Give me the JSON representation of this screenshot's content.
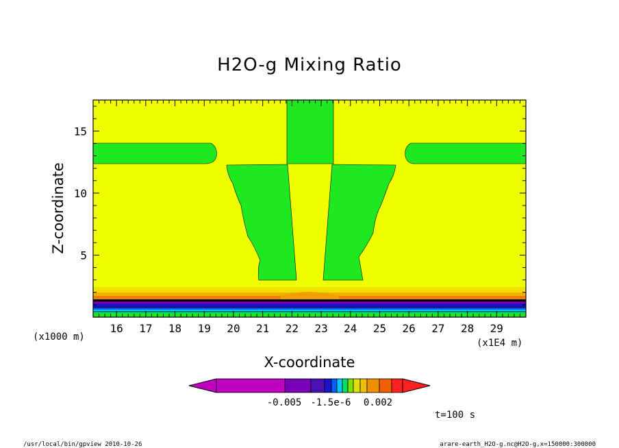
{
  "chart_data": {
    "type": "heatmap",
    "title": "H2O-g Mixing Ratio",
    "xlabel": "X-coordinate",
    "ylabel": "Z-coordinate",
    "x_unit_label": "(x1E4 m)",
    "y_unit_label": "(x1000 m)",
    "x_ticks": [
      "16",
      "17",
      "18",
      "19",
      "20",
      "21",
      "22",
      "23",
      "24",
      "25",
      "26",
      "27",
      "28",
      "29"
    ],
    "y_ticks": [
      "5",
      "10",
      "15"
    ],
    "xlim": [
      15.2,
      30.0
    ],
    "ylim": [
      0.0,
      17.5
    ],
    "colorbar": {
      "labels": [
        "-0.005",
        "-1.5e-6",
        "0.002"
      ],
      "colors": [
        "#c000c0",
        "#c000c0",
        "#7a00b8",
        "#4a10b0",
        "#1c14c8",
        "#0060ff",
        "#00c8ff",
        "#00e060",
        "#80e000",
        "#e0e000",
        "#f0c000",
        "#f09000",
        "#f06000",
        "#ff2020"
      ]
    },
    "regions": {
      "background_color": "#f0ff00",
      "plume_color": "#20e820"
    },
    "time_label": "t=100 s",
    "footer_left": "/usr/local/bin/gpview  2010-10-26",
    "footer_right": "arare-earth_H2O-g.nc@H2O-g,x=150000:300000"
  }
}
